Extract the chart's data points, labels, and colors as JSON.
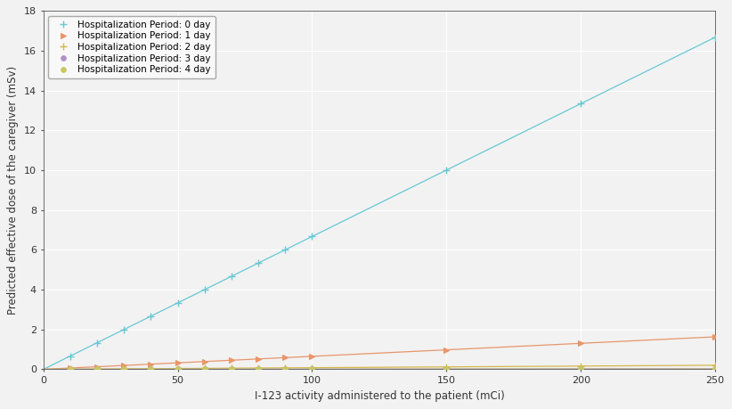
{
  "series": [
    {
      "label": "Hospitalization Period: 0 day",
      "color": "#67c8d4",
      "marker": "+",
      "slope": 0.06672,
      "intercept": 0.0
    },
    {
      "label": "Hospitalization Period: 1 day",
      "color": "#e8966a",
      "marker": ">",
      "slope": 0.006528,
      "intercept": 0.0
    },
    {
      "label": "Hospitalization Period: 2 day",
      "color": "#d4b84a",
      "marker": "+",
      "slope": 0.00082,
      "intercept": 0.0
    },
    {
      "label": "Hospitalization Period: 3 day",
      "color": "#b090c8",
      "marker": "o",
      "slope": 0.000112,
      "intercept": 0.0
    },
    {
      "label": "Hospitalization Period: 4 day",
      "color": "#c8c860",
      "marker": "o",
      "slope": 5.5e-05,
      "intercept": 0.0
    }
  ],
  "x_points": [
    10,
    20,
    30,
    40,
    50,
    60,
    70,
    80,
    90,
    100,
    150,
    200,
    250
  ],
  "xlim": [
    0,
    250
  ],
  "ylim": [
    0,
    18
  ],
  "xticks": [
    0,
    50,
    100,
    150,
    200,
    250
  ],
  "yticks": [
    0,
    2,
    4,
    6,
    8,
    10,
    12,
    14,
    16,
    18
  ],
  "xlabel": "I-123 activity administered to the patient (mCi)",
  "ylabel": "Predicted effective dose of the caregiver (mSv)",
  "background_color": "#f2f2f2",
  "plot_bg_color": "#f2f2f2",
  "grid_color": "#ffffff",
  "legend_loc": "upper left",
  "linewidth": 0.9,
  "figsize": [
    8.22,
    4.59
  ],
  "dpi": 100
}
